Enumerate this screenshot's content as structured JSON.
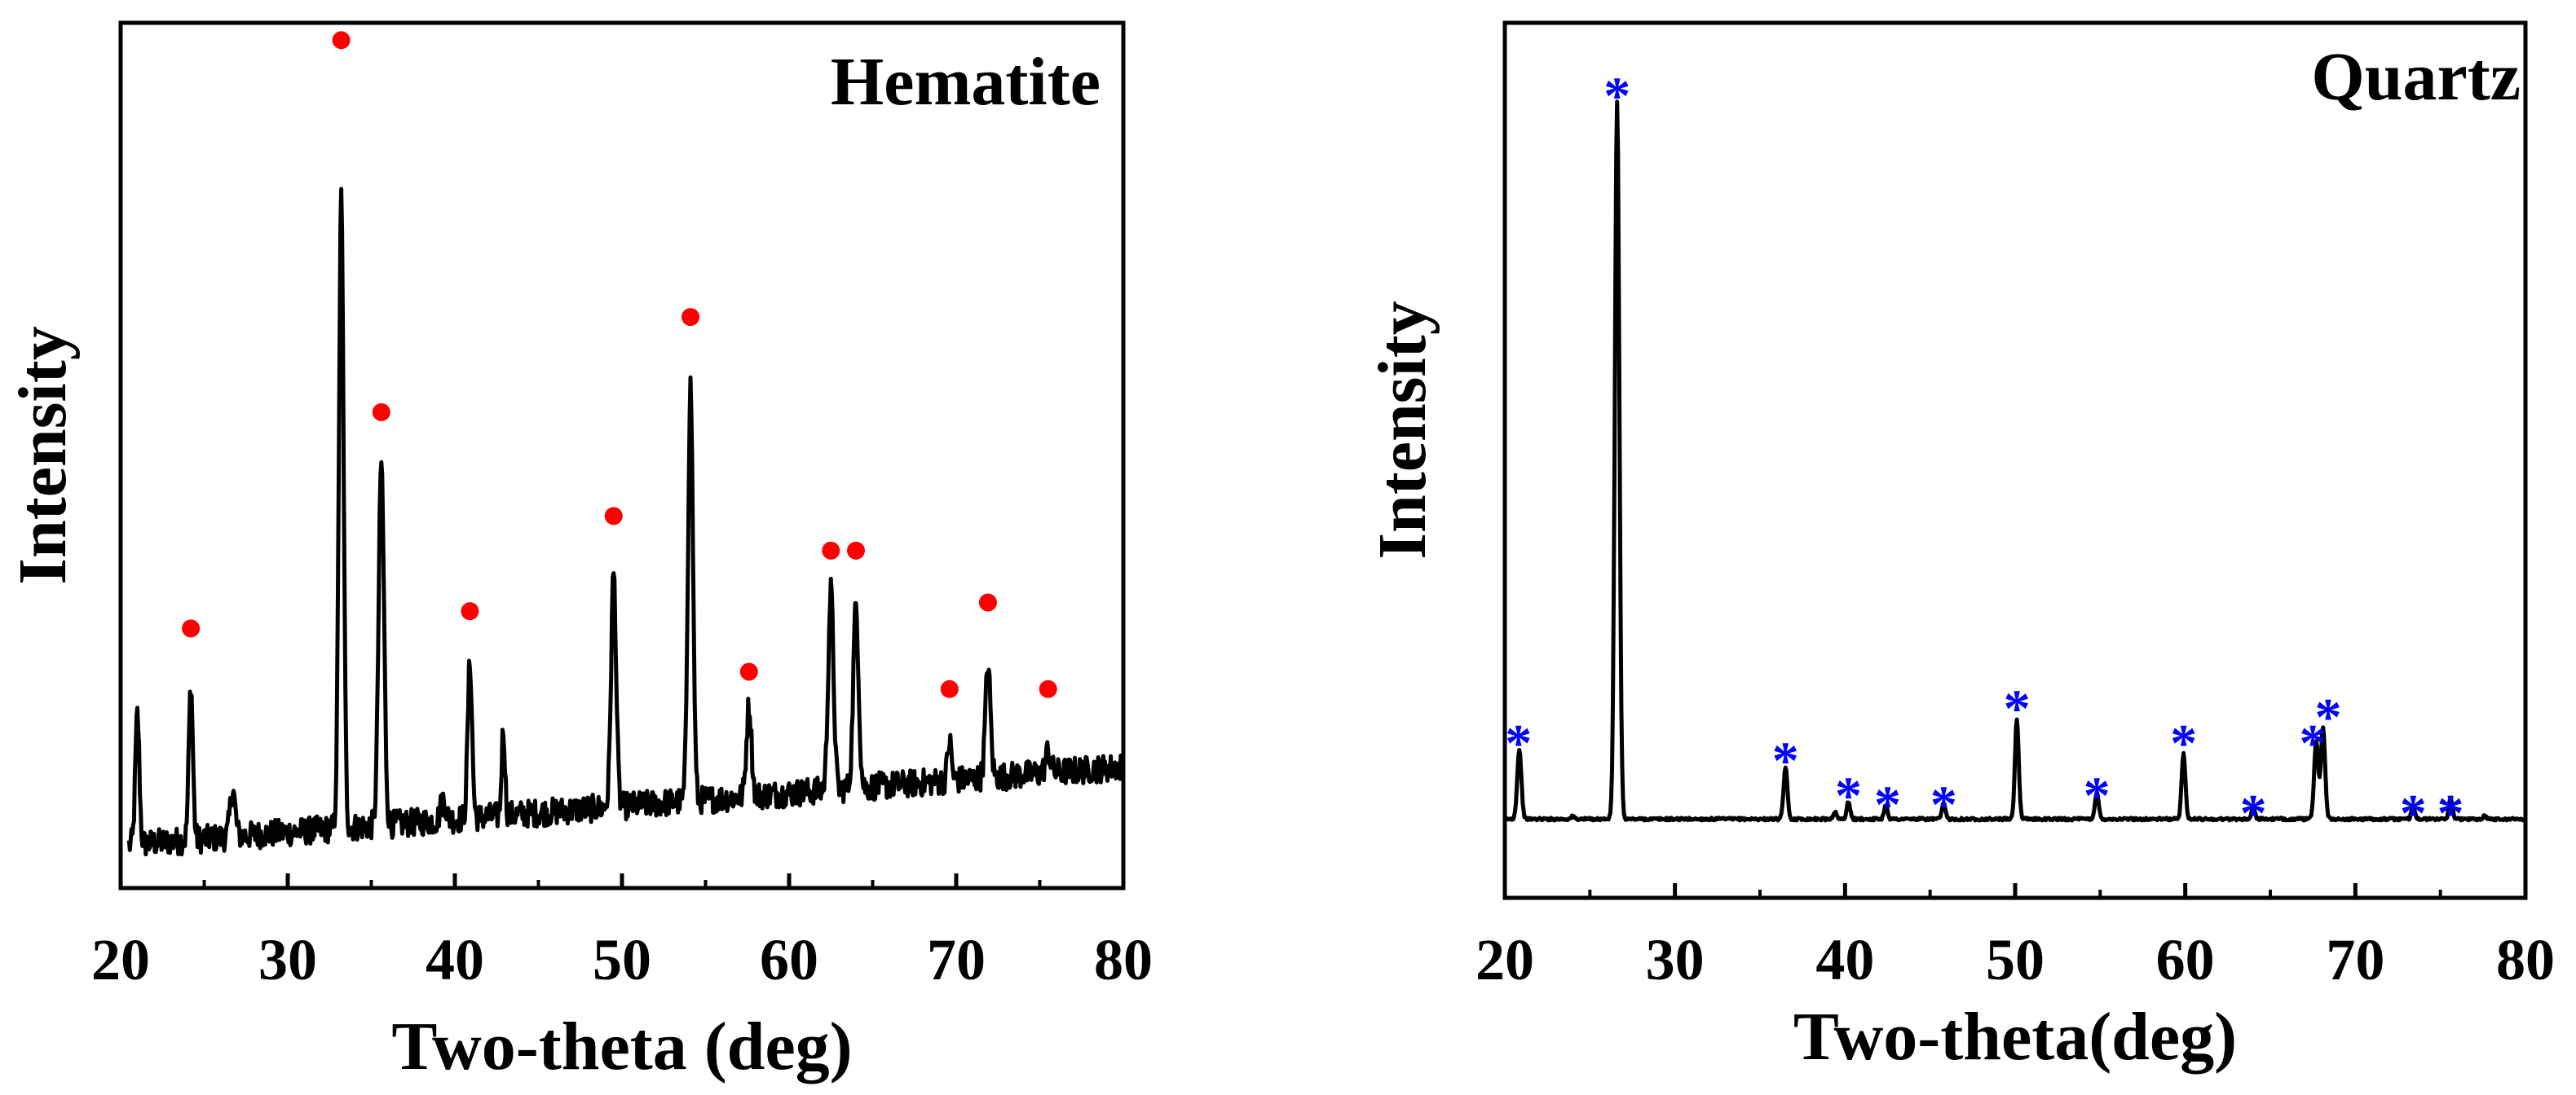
{
  "colors": {
    "line": "#000000",
    "hematite_marker": "#ff0000",
    "quartz_marker": "#0000ff",
    "background": "#ffffff"
  },
  "chart_data": [
    {
      "type": "line",
      "title": "Hematite",
      "xlabel": "Two-theta (deg)",
      "ylabel": "Intensity",
      "xlim": [
        20,
        80
      ],
      "ylim": [
        0,
        100
      ],
      "xticks": [
        "20",
        "30",
        "40",
        "50",
        "60",
        "70",
        "80"
      ],
      "grid": false,
      "legend": "none",
      "marker_glyph": "●",
      "baseline": {
        "x": [
          20.5,
          80
        ],
        "y": [
          5,
          14
        ]
      },
      "noise_amplitude": 1.6,
      "peaks": [
        {
          "x": 21.0,
          "height": 15.0,
          "width": 0.12
        },
        {
          "x": 24.2,
          "height": 18.0,
          "width": 0.12
        },
        {
          "x": 26.7,
          "height": 5.5,
          "width": 0.15
        },
        {
          "x": 33.2,
          "height": 73.0,
          "width": 0.14
        },
        {
          "x": 35.6,
          "height": 42.0,
          "width": 0.16
        },
        {
          "x": 39.3,
          "height": 2.5,
          "width": 0.15
        },
        {
          "x": 40.9,
          "height": 18.0,
          "width": 0.13
        },
        {
          "x": 42.9,
          "height": 10.0,
          "width": 0.1
        },
        {
          "x": 49.5,
          "height": 27.0,
          "width": 0.15
        },
        {
          "x": 54.1,
          "height": 48.0,
          "width": 0.15
        },
        {
          "x": 57.6,
          "height": 10.5,
          "width": 0.15
        },
        {
          "x": 62.5,
          "height": 23.0,
          "width": 0.16
        },
        {
          "x": 64.0,
          "height": 21.0,
          "width": 0.16
        },
        {
          "x": 69.6,
          "height": 4.5,
          "width": 0.12
        },
        {
          "x": 71.9,
          "height": 13.0,
          "width": 0.15
        },
        {
          "x": 75.5,
          "height": 2.5,
          "width": 0.15
        }
      ],
      "markers": [
        {
          "x": 24.2,
          "y": 30
        },
        {
          "x": 33.2,
          "y": 98
        },
        {
          "x": 35.6,
          "y": 55
        },
        {
          "x": 40.9,
          "y": 32
        },
        {
          "x": 49.5,
          "y": 43
        },
        {
          "x": 54.1,
          "y": 66
        },
        {
          "x": 57.6,
          "y": 25
        },
        {
          "x": 62.5,
          "y": 39
        },
        {
          "x": 64.0,
          "y": 39
        },
        {
          "x": 69.6,
          "y": 23
        },
        {
          "x": 71.9,
          "y": 33
        },
        {
          "x": 75.5,
          "y": 23
        }
      ]
    },
    {
      "type": "line",
      "title": "Quartz",
      "xlabel": "Two-theta(deg)",
      "ylabel": "Intensity",
      "xlim": [
        20,
        80
      ],
      "ylim": [
        0,
        100
      ],
      "xticks": [
        "20",
        "30",
        "40",
        "50",
        "60",
        "70",
        "80"
      ],
      "grid": false,
      "legend": "none",
      "marker_glyph": "*",
      "baseline": {
        "x": [
          20,
          80
        ],
        "y": [
          9,
          9
        ]
      },
      "noise_amplitude": 0.15,
      "peaks": [
        {
          "x": 20.85,
          "height": 8.0,
          "width": 0.12
        },
        {
          "x": 24.0,
          "height": 0.3,
          "width": 0.1
        },
        {
          "x": 26.6,
          "height": 82.0,
          "width": 0.13
        },
        {
          "x": 36.5,
          "height": 6.0,
          "width": 0.11
        },
        {
          "x": 39.4,
          "height": 0.8,
          "width": 0.1
        },
        {
          "x": 40.2,
          "height": 2.0,
          "width": 0.1
        },
        {
          "x": 42.4,
          "height": 1.6,
          "width": 0.1
        },
        {
          "x": 45.8,
          "height": 1.8,
          "width": 0.1
        },
        {
          "x": 50.1,
          "height": 11.5,
          "width": 0.11
        },
        {
          "x": 54.8,
          "height": 3.0,
          "width": 0.11
        },
        {
          "x": 59.9,
          "height": 7.5,
          "width": 0.11
        },
        {
          "x": 64.0,
          "height": 1.3,
          "width": 0.1
        },
        {
          "x": 67.7,
          "height": 9.0,
          "width": 0.12
        },
        {
          "x": 68.1,
          "height": 10.5,
          "width": 0.12
        },
        {
          "x": 73.4,
          "height": 1.5,
          "width": 0.1
        },
        {
          "x": 75.6,
          "height": 2.4,
          "width": 0.1
        },
        {
          "x": 77.6,
          "height": 0.4,
          "width": 0.1
        }
      ],
      "markers": [
        {
          "x": 20.8,
          "y": 19
        },
        {
          "x": 26.6,
          "y": 93
        },
        {
          "x": 36.5,
          "y": 17
        },
        {
          "x": 40.2,
          "y": 13
        },
        {
          "x": 42.5,
          "y": 12
        },
        {
          "x": 45.8,
          "y": 12
        },
        {
          "x": 50.1,
          "y": 23
        },
        {
          "x": 54.8,
          "y": 13
        },
        {
          "x": 59.9,
          "y": 19
        },
        {
          "x": 64.0,
          "y": 11
        },
        {
          "x": 67.5,
          "y": 19
        },
        {
          "x": 68.4,
          "y": 22
        },
        {
          "x": 73.4,
          "y": 11
        },
        {
          "x": 75.6,
          "y": 11
        }
      ]
    }
  ]
}
